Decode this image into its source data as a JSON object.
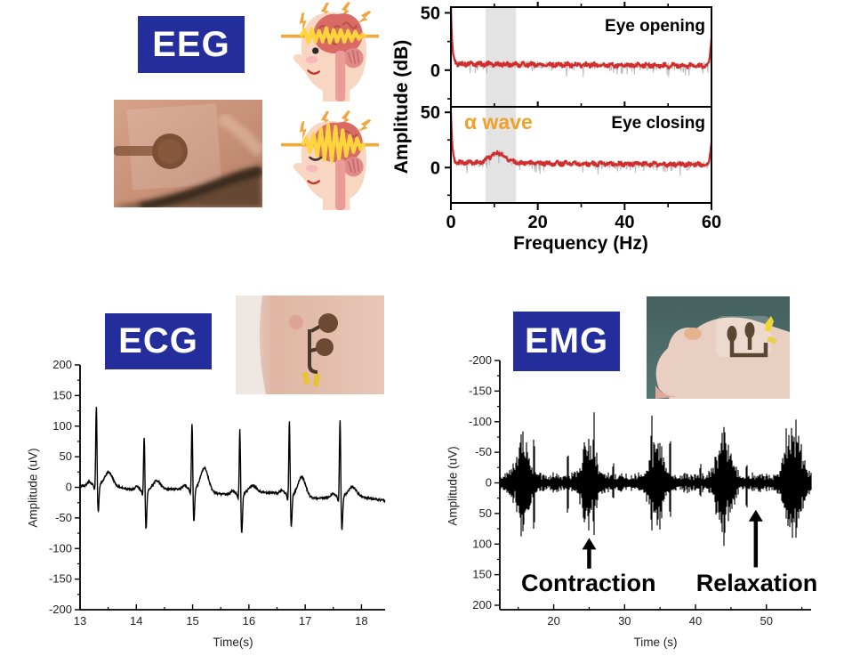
{
  "sections": {
    "eeg": {
      "label": "EEG",
      "ylabel": "Amplitude (dB)",
      "xlabel": "Frequency (Hz)",
      "panel_top_annotation": "Eye opening",
      "panel_bottom_annotation": "Eye closing",
      "alpha_label": "α wave"
    },
    "ecg": {
      "label": "ECG",
      "ylabel": "Amplitude (uV)",
      "xlabel": "Time(s)"
    },
    "emg": {
      "label": "EMG",
      "ylabel": "Amplitude (uV)",
      "xlabel": "Time (s)"
    }
  },
  "colors": {
    "label_box_blue": "#232e9c",
    "eeg_trace_red": "#d22c2c",
    "eeg_raw_gray": "#b9b9b9",
    "alpha_band_gray": "#e3e3e3",
    "alpha_text_orange": "#efa22b",
    "signal_black": "#000000"
  },
  "chart_data": [
    {
      "id": "eeg_spectra",
      "type": "line",
      "title": "EEG amplitude spectra, eye opening vs eye closing",
      "xlabel": "Frequency (Hz)",
      "ylabel": "Amplitude (dB)",
      "xlim": [
        0,
        60
      ],
      "ylim": [
        -32,
        55
      ],
      "x_major_ticks": [
        0,
        20,
        40,
        60
      ],
      "x_minor_ticks": [
        10,
        30,
        50
      ],
      "y_major_ticks": [
        0,
        50
      ],
      "y_minor_ticks": [
        -25,
        25
      ],
      "alpha_band_hz": [
        8,
        15
      ],
      "grid": false,
      "panels": [
        {
          "label": "Eye opening",
          "baseline_db": 5.5,
          "dc_peak_db": 48,
          "alpha_peak_db": 0,
          "alpha_center_hz": 10.8,
          "mains_peak_db": 28,
          "mains_hz": 60
        },
        {
          "label": "Eye closing",
          "baseline_db": 4.5,
          "dc_peak_db": 45,
          "alpha_peak_db": 9,
          "alpha_center_hz": 10.8,
          "mains_peak_db": 27,
          "mains_hz": 60
        }
      ]
    },
    {
      "id": "ecg",
      "type": "line",
      "title": "ECG trace",
      "xlabel": "Time(s)",
      "ylabel": "Amplitude (uV)",
      "xlim": [
        13,
        18.42
      ],
      "ylim": [
        -200,
        200
      ],
      "x_major_ticks": [
        13,
        14,
        15,
        16,
        17,
        18
      ],
      "y_major_ticks": [
        200,
        150,
        100,
        50,
        0,
        -50,
        -100,
        -150,
        -200
      ],
      "grid": false,
      "baseline_start_uv": 2,
      "baseline_end_uv": -20,
      "beats": [
        {
          "t": 13.29,
          "r": 130,
          "s": -46,
          "t_wave": 22
        },
        {
          "t": 14.14,
          "r": 92,
          "s": -63,
          "t_wave": 16
        },
        {
          "t": 14.99,
          "r": 110,
          "s": -53,
          "t_wave": 38
        },
        {
          "t": 15.84,
          "r": 110,
          "s": -66,
          "t_wave": 12
        },
        {
          "t": 16.72,
          "r": 125,
          "s": -53,
          "t_wave": 33
        },
        {
          "t": 17.62,
          "r": 128,
          "s": -56,
          "t_wave": 15
        }
      ]
    },
    {
      "id": "emg",
      "type": "line",
      "title": "EMG trace with contraction bursts",
      "xlabel": "Time (s)",
      "ylabel": "Amplitude (uV)",
      "xlim": [
        12.4,
        56.3
      ],
      "ylim_top_to_bottom": [
        -200,
        200
      ],
      "x_major_ticks": [
        20,
        30,
        40,
        50
      ],
      "x_minor_ticks": [
        15,
        25,
        35,
        45,
        55
      ],
      "y_major_ticks": [
        -200,
        -150,
        -100,
        -50,
        0,
        50,
        100,
        150,
        200
      ],
      "grid": false,
      "noise_uv": 10,
      "bursts": [
        {
          "t": 15.6,
          "amp": 62,
          "w": 0.85
        },
        {
          "t": 25.0,
          "amp": 72,
          "w": 0.8
        },
        {
          "t": 34.5,
          "amp": 70,
          "w": 0.75
        },
        {
          "t": 44.0,
          "amp": 72,
          "w": 0.85
        },
        {
          "t": 53.8,
          "amp": 75,
          "w": 1.0
        }
      ],
      "spikes": [
        {
          "t": 17.2,
          "amp": 82
        },
        {
          "t": 22.0,
          "amp": 50
        },
        {
          "t": 25.7,
          "amp": 90
        },
        {
          "t": 28.4,
          "amp": 32
        },
        {
          "t": 33.8,
          "amp": 92
        },
        {
          "t": 36.4,
          "amp": 62
        },
        {
          "t": 40.7,
          "amp": 30
        },
        {
          "t": 47.2,
          "amp": 38
        },
        {
          "t": 52.8,
          "amp": 86
        }
      ],
      "annotations": [
        {
          "text": "Contraction",
          "t": 25.0,
          "arrow_from_uv": 140,
          "arrow_to_uv": 90
        },
        {
          "text": "Relaxation",
          "t": 48.5,
          "arrow_from_uv": 138,
          "arrow_to_uv": 44
        }
      ]
    }
  ]
}
